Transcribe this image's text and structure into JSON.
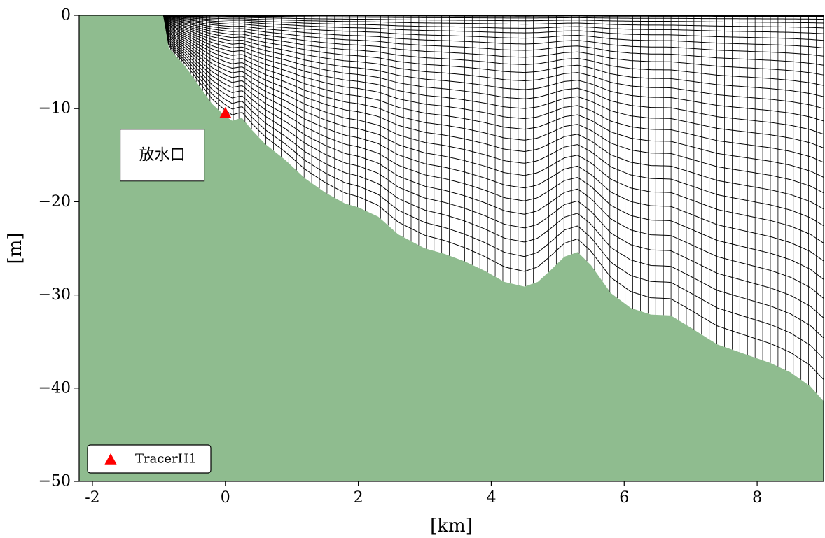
{
  "chart_data": {
    "type": "area",
    "xlabel": "[km]",
    "ylabel": "[m]",
    "xlim": [
      -2.2,
      9.0
    ],
    "ylim": [
      -50,
      0
    ],
    "x_ticks": [
      -2,
      0,
      2,
      4,
      6,
      8
    ],
    "y_ticks": [
      0,
      -10,
      -20,
      -30,
      -40,
      -50
    ],
    "x_tick_labels": [
      "-2",
      "0",
      "2",
      "4",
      "6",
      "8"
    ],
    "y_tick_labels": [
      "0",
      "−10",
      "−20",
      "−30",
      "−40",
      "−50"
    ],
    "grid": false,
    "colors": {
      "land": "#8fbc8f",
      "mesh": "#000000",
      "marker": "#ff0000"
    },
    "bathymetry": {
      "x": [
        -2.2,
        -0.93,
        -0.85,
        -0.6,
        -0.4,
        -0.2,
        0.0,
        0.1,
        0.25,
        0.4,
        0.6,
        0.9,
        1.2,
        1.5,
        1.8,
        2.0,
        2.3,
        2.6,
        3.0,
        3.3,
        3.6,
        3.9,
        4.2,
        4.5,
        4.7,
        4.9,
        5.1,
        5.3,
        5.5,
        5.8,
        6.1,
        6.4,
        6.7,
        7.0,
        7.4,
        7.8,
        8.2,
        8.5,
        8.8,
        9.0
      ],
      "y": [
        0,
        0,
        -3.5,
        -5.5,
        -7.5,
        -9.5,
        -10.8,
        -11.3,
        -11.0,
        -12.3,
        -13.8,
        -15.5,
        -17.5,
        -19.0,
        -20.2,
        -20.6,
        -21.6,
        -23.5,
        -25.0,
        -25.6,
        -26.4,
        -27.4,
        -28.6,
        -29.1,
        -28.6,
        -27.3,
        -25.9,
        -25.4,
        -26.8,
        -29.8,
        -31.4,
        -32.1,
        -32.2,
        -33.5,
        -35.3,
        -36.3,
        -37.3,
        -38.3,
        -39.8,
        -41.4
      ]
    },
    "mesh": {
      "x_start": -0.93,
      "x_end": 9.0,
      "layers": 30
    },
    "series": [
      {
        "name": "TracerH1",
        "type": "scatter",
        "marker": "triangle",
        "x": [
          0.0
        ],
        "y": [
          -10.5
        ]
      }
    ],
    "legend": {
      "placement": "bottom-left",
      "entries": [
        "TracerH1"
      ]
    },
    "annotations": [
      {
        "text": "放水口",
        "x": -0.95,
        "y": -15.0
      }
    ]
  }
}
